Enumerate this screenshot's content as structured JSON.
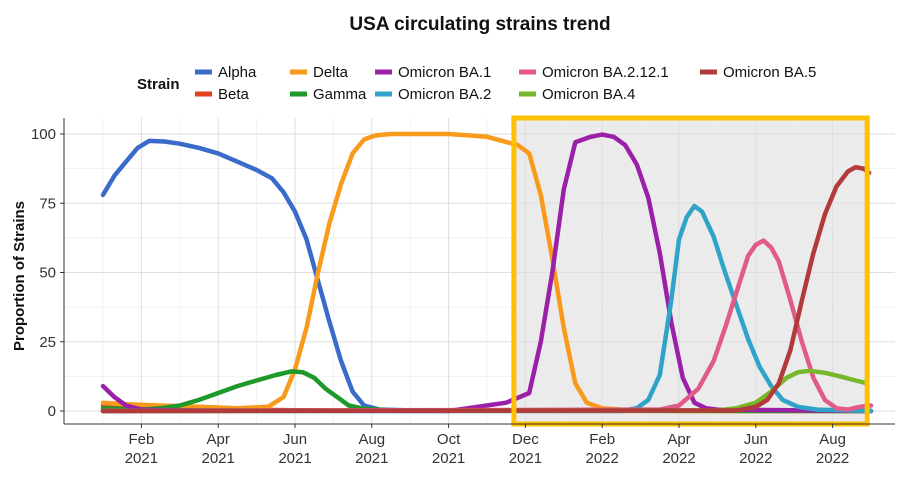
{
  "chart_data": {
    "type": "line",
    "title": "USA circulating strains trend",
    "xlabel": "",
    "ylabel": "Proportion of Strains",
    "ylim": [
      0,
      100
    ],
    "yticks": [
      0,
      25,
      50,
      75,
      100
    ],
    "xlim": [
      -0.6,
      20.0
    ],
    "xticks": [
      {
        "pos": 1,
        "line1": "Feb",
        "line2": "2021"
      },
      {
        "pos": 3,
        "line1": "Apr",
        "line2": "2021"
      },
      {
        "pos": 5,
        "line1": "Jun",
        "line2": "2021"
      },
      {
        "pos": 7,
        "line1": "Aug",
        "line2": "2021"
      },
      {
        "pos": 9,
        "line1": "Oct",
        "line2": "2021"
      },
      {
        "pos": 11,
        "line1": "Dec",
        "line2": "2021"
      },
      {
        "pos": 13,
        "line1": "Feb",
        "line2": "2022"
      },
      {
        "pos": 15,
        "line1": "Apr",
        "line2": "2022"
      },
      {
        "pos": 17,
        "line1": "Jun",
        "line2": "2022"
      },
      {
        "pos": 19,
        "line1": "Aug",
        "line2": "2022"
      }
    ],
    "x_unit": "months since 2021-01-01",
    "legend": {
      "title": "Strain",
      "placement": "top"
    },
    "highlight": {
      "x_start": 10.7,
      "x_end": 19.9,
      "color": "#FFC000",
      "fill": "#e8e8e8"
    },
    "series": [
      {
        "name": "Alpha",
        "color": "#3A6BCB",
        "points": [
          [
            0,
            78
          ],
          [
            0.3,
            85
          ],
          [
            0.6,
            90
          ],
          [
            0.9,
            95
          ],
          [
            1.2,
            97.5
          ],
          [
            1.6,
            97.3
          ],
          [
            2,
            96.5
          ],
          [
            2.5,
            95
          ],
          [
            3,
            93
          ],
          [
            3.5,
            90
          ],
          [
            4,
            87
          ],
          [
            4.4,
            84
          ],
          [
            4.7,
            79
          ],
          [
            5,
            72
          ],
          [
            5.3,
            62
          ],
          [
            5.6,
            47
          ],
          [
            5.9,
            32
          ],
          [
            6.2,
            18
          ],
          [
            6.5,
            7
          ],
          [
            6.8,
            2
          ],
          [
            7.2,
            0.5
          ],
          [
            8,
            0.2
          ],
          [
            20,
            0
          ]
        ]
      },
      {
        "name": "Beta",
        "color": "#E2401F",
        "points": [
          [
            0,
            2
          ],
          [
            1,
            1.5
          ],
          [
            2,
            1
          ],
          [
            3,
            0.6
          ],
          [
            5,
            0.3
          ],
          [
            7,
            0.1
          ],
          [
            20,
            0
          ]
        ]
      },
      {
        "name": "Delta",
        "color": "#F89A1C",
        "points": [
          [
            0,
            3
          ],
          [
            0.5,
            2.5
          ],
          [
            1.5,
            2
          ],
          [
            2.5,
            1.5
          ],
          [
            3.5,
            1
          ],
          [
            4.3,
            1.5
          ],
          [
            4.7,
            5
          ],
          [
            5,
            15
          ],
          [
            5.3,
            30
          ],
          [
            5.6,
            50
          ],
          [
            5.9,
            68
          ],
          [
            6.2,
            82
          ],
          [
            6.5,
            93
          ],
          [
            6.8,
            98
          ],
          [
            7.1,
            99.5
          ],
          [
            7.5,
            100
          ],
          [
            8,
            100
          ],
          [
            9,
            100
          ],
          [
            10,
            99
          ],
          [
            10.8,
            96
          ],
          [
            11.1,
            93
          ],
          [
            11.4,
            78
          ],
          [
            11.7,
            55
          ],
          [
            12,
            30
          ],
          [
            12.3,
            10
          ],
          [
            12.6,
            3
          ],
          [
            13,
            1
          ],
          [
            13.5,
            0.5
          ],
          [
            15,
            0
          ],
          [
            20,
            0
          ]
        ]
      },
      {
        "name": "Gamma",
        "color": "#1F9A2A",
        "points": [
          [
            0,
            1
          ],
          [
            1,
            0.5
          ],
          [
            1.5,
            1
          ],
          [
            2,
            2
          ],
          [
            2.5,
            4
          ],
          [
            3,
            6.5
          ],
          [
            3.5,
            9
          ],
          [
            4,
            11
          ],
          [
            4.5,
            13
          ],
          [
            4.9,
            14.3
          ],
          [
            5.2,
            14
          ],
          [
            5.5,
            12
          ],
          [
            5.8,
            8
          ],
          [
            6.1,
            5
          ],
          [
            6.4,
            2
          ],
          [
            6.8,
            0.8
          ],
          [
            7.5,
            0.2
          ],
          [
            20,
            0
          ]
        ]
      },
      {
        "name": "Omicron BA.1",
        "color": "#9B20A8",
        "points": [
          [
            0,
            9
          ],
          [
            0.3,
            5
          ],
          [
            0.6,
            2
          ],
          [
            1,
            0.5
          ],
          [
            2,
            0.2
          ],
          [
            9,
            0
          ],
          [
            10.5,
            3
          ],
          [
            11.1,
            6.5
          ],
          [
            11.4,
            25
          ],
          [
            11.7,
            50
          ],
          [
            12,
            80
          ],
          [
            12.3,
            97
          ],
          [
            12.7,
            99
          ],
          [
            13,
            99.8
          ],
          [
            13.3,
            99
          ],
          [
            13.6,
            96
          ],
          [
            13.9,
            89
          ],
          [
            14.2,
            77
          ],
          [
            14.5,
            57
          ],
          [
            14.8,
            32
          ],
          [
            15.1,
            12
          ],
          [
            15.4,
            3
          ],
          [
            15.7,
            1
          ],
          [
            16,
            0.5
          ],
          [
            20,
            0
          ]
        ]
      },
      {
        "name": "Omicron BA.2",
        "color": "#2FA3C8",
        "points": [
          [
            0,
            0
          ],
          [
            13.5,
            0
          ],
          [
            13.9,
            1
          ],
          [
            14.2,
            4
          ],
          [
            14.5,
            13
          ],
          [
            14.8,
            40
          ],
          [
            15,
            62
          ],
          [
            15.2,
            70
          ],
          [
            15.4,
            74
          ],
          [
            15.6,
            72
          ],
          [
            15.9,
            63
          ],
          [
            16.2,
            50
          ],
          [
            16.5,
            38
          ],
          [
            16.8,
            26
          ],
          [
            17.1,
            16
          ],
          [
            17.4,
            9
          ],
          [
            17.7,
            4
          ],
          [
            18.1,
            1.5
          ],
          [
            18.6,
            0.5
          ],
          [
            20,
            0
          ]
        ]
      },
      {
        "name": "Omicron BA.2.12.1",
        "color": "#E05A8A",
        "points": [
          [
            0,
            0
          ],
          [
            14.5,
            0.5
          ],
          [
            15,
            2
          ],
          [
            15.5,
            8
          ],
          [
            15.9,
            18
          ],
          [
            16.2,
            30
          ],
          [
            16.5,
            43
          ],
          [
            16.8,
            56
          ],
          [
            17,
            60
          ],
          [
            17.2,
            61.5
          ],
          [
            17.4,
            59
          ],
          [
            17.6,
            54
          ],
          [
            17.9,
            40
          ],
          [
            18.2,
            25
          ],
          [
            18.5,
            12
          ],
          [
            18.8,
            4
          ],
          [
            19.1,
            1
          ],
          [
            19.4,
            0.5
          ],
          [
            19.7,
            1.5
          ],
          [
            20,
            2
          ]
        ]
      },
      {
        "name": "Omicron BA.4",
        "color": "#77B82A",
        "points": [
          [
            0,
            0
          ],
          [
            16,
            0.2
          ],
          [
            16.5,
            1
          ],
          [
            17,
            3
          ],
          [
            17.4,
            7
          ],
          [
            17.8,
            12
          ],
          [
            18.1,
            14
          ],
          [
            18.4,
            14.5
          ],
          [
            18.8,
            13.8
          ],
          [
            19.2,
            12.5
          ],
          [
            19.6,
            11
          ],
          [
            19.9,
            10
          ]
        ]
      },
      {
        "name": "Omicron BA.5",
        "color": "#B23A3A",
        "points": [
          [
            0,
            0
          ],
          [
            16.5,
            0.2
          ],
          [
            17,
            1.5
          ],
          [
            17.3,
            4
          ],
          [
            17.6,
            10
          ],
          [
            17.9,
            22
          ],
          [
            18.2,
            40
          ],
          [
            18.5,
            57
          ],
          [
            18.8,
            71
          ],
          [
            19.1,
            81
          ],
          [
            19.4,
            86.5
          ],
          [
            19.6,
            88
          ],
          [
            19.8,
            87.5
          ],
          [
            19.95,
            86
          ]
        ]
      }
    ]
  }
}
